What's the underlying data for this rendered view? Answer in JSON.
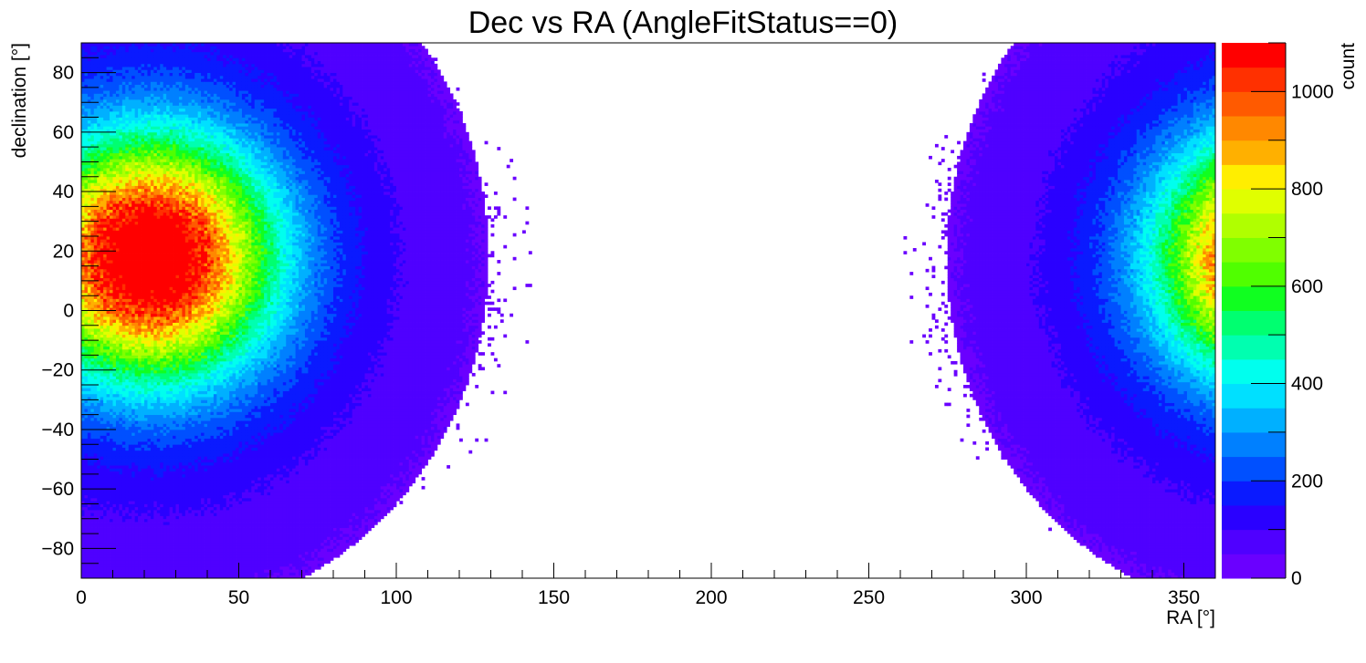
{
  "chart_data": {
    "type": "heatmap",
    "title": "Dec vs RA (AngleFitStatus==0)",
    "xlabel": "RA [°]",
    "ylabel": "declination [°]",
    "zlabel": "count",
    "xlim": [
      0,
      360
    ],
    "ylim": [
      -90,
      90
    ],
    "zlim": [
      0,
      1100
    ],
    "xticks": [
      0,
      50,
      100,
      150,
      200,
      250,
      300,
      350
    ],
    "xtick_labels": [
      "0",
      "50",
      "100",
      "150",
      "200",
      "250",
      "300",
      "350"
    ],
    "yticks": [
      -80,
      -60,
      -40,
      -20,
      0,
      20,
      40,
      60,
      80
    ],
    "ytick_labels": [
      "−80",
      "−60",
      "−40",
      "−20",
      "0",
      "20",
      "40",
      "60",
      "80"
    ],
    "zticks": [
      0,
      200,
      400,
      600,
      800,
      1000
    ],
    "ztick_labels": [
      "0",
      "200",
      "400",
      "600",
      "800",
      "1000"
    ],
    "grid": false,
    "colorbar": "right",
    "palette": [
      "#6a00ff",
      "#4f00ff",
      "#2a00ff",
      "#0a1aff",
      "#0050ff",
      "#0080ff",
      "#00b0ff",
      "#00e0ff",
      "#00ffee",
      "#00ffb0",
      "#00ff70",
      "#10ff20",
      "#50ff00",
      "#80ff00",
      "#b0ff00",
      "#e0ff00",
      "#ffee00",
      "#ffb000",
      "#ff8800",
      "#ff5a00",
      "#ff3000",
      "#ff0000"
    ],
    "distribution": {
      "peak_count": 1050,
      "peak_ra": 22,
      "peak_dec": 18,
      "ra_sigma": 26,
      "dec_sigma": 27,
      "wraps_at_ra": 360,
      "empty_region_center_ra": 200
    }
  }
}
